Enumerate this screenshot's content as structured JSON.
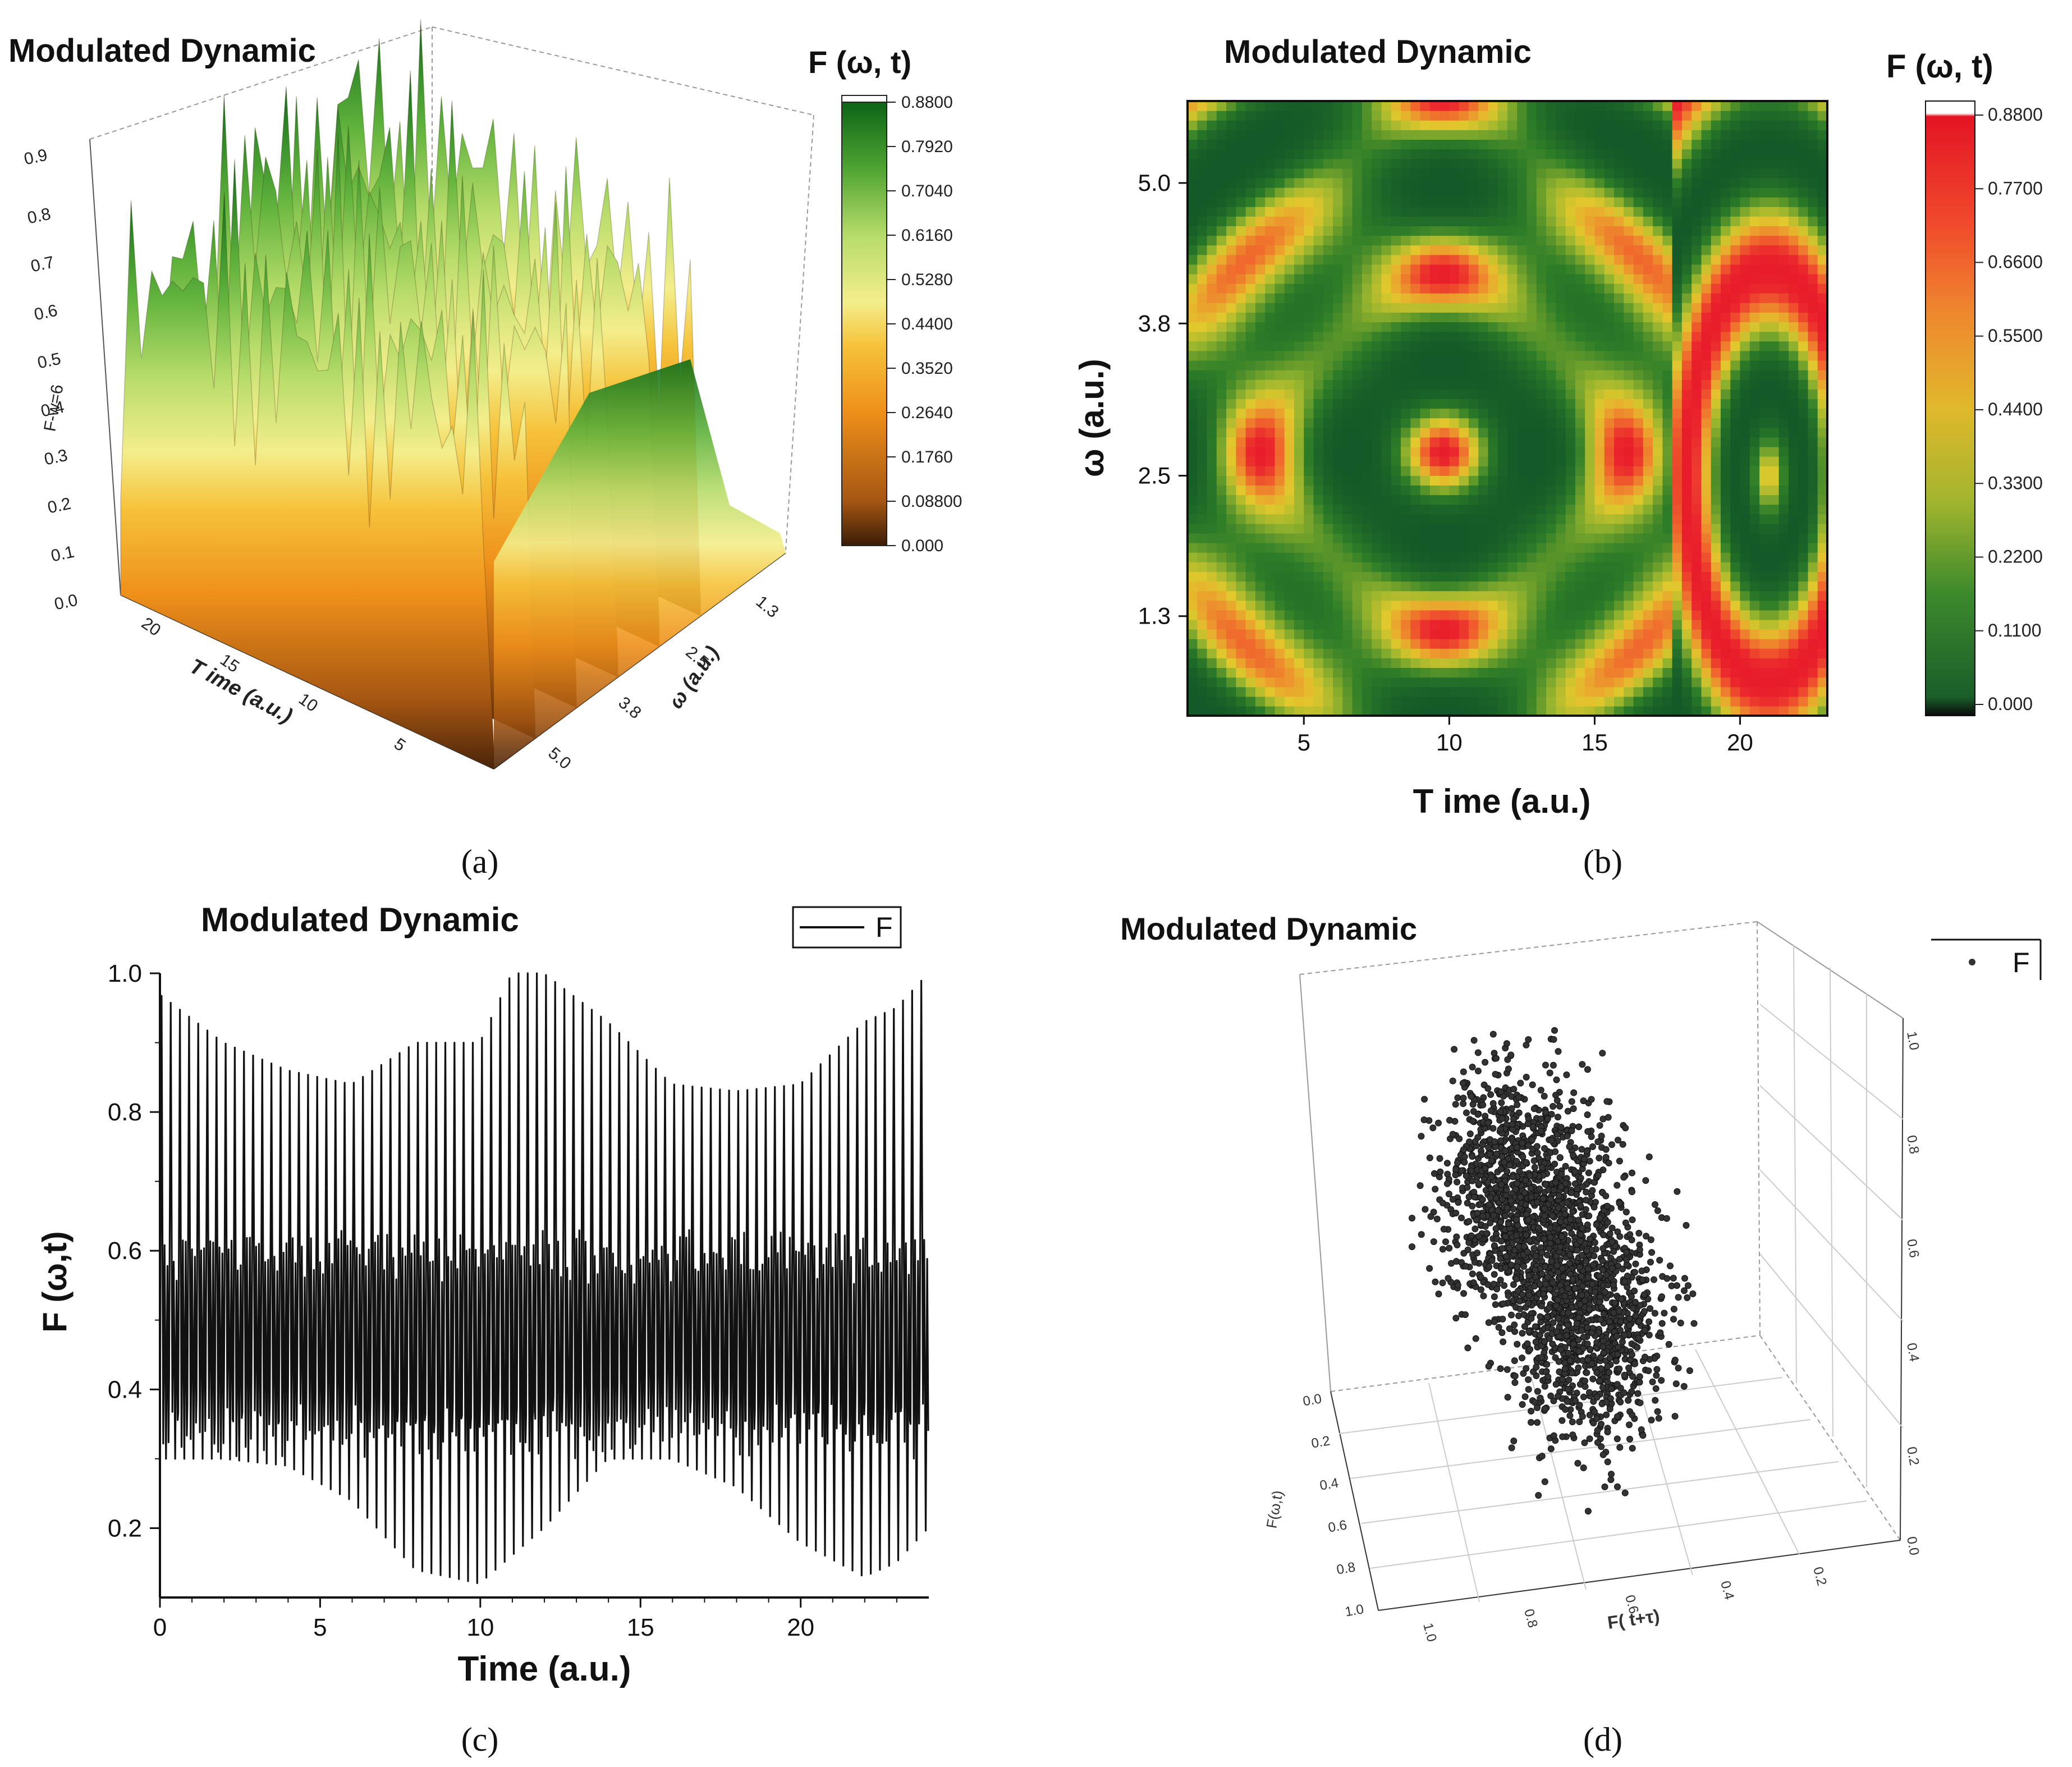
{
  "colors": {
    "heat_stops": [
      "#5a2e0c",
      "#a55612",
      "#ee8f1a",
      "#f4ce45",
      "#f3ee8c",
      "#bde070",
      "#6fbe45",
      "#2f8d24",
      "#106a18"
    ],
    "map_stops": [
      "#0a0a0a",
      "#1f6a2e",
      "#5a9a30",
      "#c8c430",
      "#e8a830",
      "#f07030",
      "#e0202a",
      "#ffffff"
    ],
    "line": "#111111",
    "point": "#333333"
  },
  "panels": {
    "a": {
      "label": "(a)",
      "chart_data": {
        "type": "surface3d",
        "title": "Modulated Dynamic",
        "colorbar_title": "F (ω, t)",
        "colorbar_ticks": [
          "0.8800",
          "0.7920",
          "0.7040",
          "0.6160",
          "0.5280",
          "0.4400",
          "0.3520",
          "0.2640",
          "0.1760",
          "0.08800",
          "0.000"
        ],
        "z_label": "F-w=6",
        "z_ticks": [
          "0.0",
          "0.1",
          "0.2",
          "0.3",
          "0.4",
          "0.5",
          "0.6",
          "0.7",
          "0.8",
          "0.9"
        ],
        "x_label": "T ime (a.u.)",
        "x_ticks": [
          "20",
          "15",
          "10",
          "5"
        ],
        "y_label": "ω (a.u.)",
        "y_ticks": [
          "1.3",
          "2.5",
          "3.8",
          "5.0"
        ],
        "zlim": [
          0,
          0.9
        ]
      }
    },
    "b": {
      "label": "(b)",
      "chart_data": {
        "type": "heatmap",
        "title": "Modulated Dynamic",
        "colorbar_title": "F (ω, t)",
        "colorbar_ticks": [
          "0.8800",
          "0.7700",
          "0.6600",
          "0.5500",
          "0.4400",
          "0.3300",
          "0.2200",
          "0.1100",
          "0.000"
        ],
        "xlabel": "T ime (a.u.)",
        "x_ticks": [
          "5",
          "10",
          "15",
          "20"
        ],
        "xlim": [
          1,
          23
        ],
        "ylabel": "ω (a.u.)",
        "y_ticks": [
          "5.0",
          "3.8",
          "2.5",
          "1.3"
        ],
        "ylim": [
          0.45,
          5.7
        ],
        "zlim": [
          0,
          0.88
        ]
      }
    },
    "c": {
      "label": "(c)",
      "chart_data": {
        "type": "line",
        "title": "Modulated Dynamic",
        "legend": [
          "F"
        ],
        "legend_position": "top-right",
        "xlabel": "Time (a.u.)",
        "ylabel": "F (ω,t)",
        "xlim": [
          0,
          24
        ],
        "ylim": [
          0.1,
          1.0
        ],
        "x_ticks": [
          "0",
          "5",
          "10",
          "15",
          "20"
        ],
        "y_ticks": [
          "1.0",
          "0.8",
          "0.6",
          "0.4",
          "0.2"
        ],
        "x_tick_values": [
          0,
          5,
          10,
          15,
          20
        ],
        "y_tick_values": [
          1.0,
          0.8,
          0.6,
          0.4,
          0.2
        ],
        "series": [
          {
            "name": "F",
            "envelope_time": [
              0,
              2,
              4,
              6,
              8,
              10,
              11,
              12,
              14,
              16,
              18,
              20,
              22,
              23,
              24
            ],
            "upper_peak": [
              0.97,
              0.9,
              0.86,
              0.84,
              0.9,
              0.9,
              1.0,
              1.0,
              0.93,
              0.84,
              0.83,
              0.84,
              0.93,
              0.95,
              1.0
            ],
            "lower_trough": [
              0.3,
              0.3,
              0.29,
              0.24,
              0.14,
              0.12,
              0.16,
              0.2,
              0.3,
              0.3,
              0.26,
              0.18,
              0.13,
              0.15,
              0.2
            ],
            "oscillation_count": 84
          }
        ]
      }
    },
    "d": {
      "label": "(d)",
      "chart_data": {
        "type": "scatter3d",
        "title": "Modulated Dynamic",
        "legend": [
          "F"
        ],
        "legend_position": "top-right",
        "x_label": "F( t+τ)",
        "x_ticks": [
          "1.0",
          "0.8",
          "0.6",
          "0.4",
          "0.2"
        ],
        "y_label": "F(ω,t)",
        "y_ticks": [
          "0.0",
          "0.2",
          "0.4",
          "0.6",
          "0.8",
          "1.0"
        ],
        "z_ticks": [
          "1.0",
          "0.8",
          "0.6",
          "0.4",
          "0.2",
          "0.0"
        ],
        "point_count": 2400,
        "cluster_centers": [
          [
            0.45,
            0.5,
            0.55
          ],
          [
            0.3,
            0.6,
            0.7
          ],
          [
            0.6,
            0.35,
            0.35
          ]
        ]
      }
    }
  }
}
